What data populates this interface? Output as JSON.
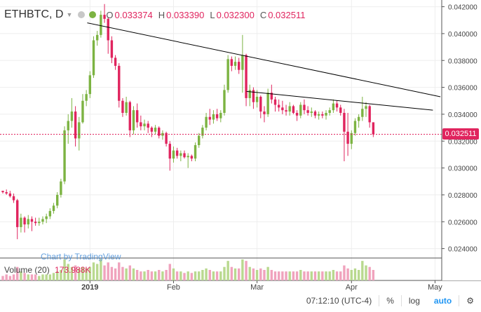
{
  "header": {
    "symbol": "ETHBTC, D",
    "ohlc": [
      {
        "k": "O",
        "v": "0.033374"
      },
      {
        "k": "H",
        "v": "0.033390"
      },
      {
        "k": "L",
        "v": "0.032300"
      },
      {
        "k": "C",
        "v": "0.032511"
      }
    ]
  },
  "watermark": "Chart by TradingView",
  "volume": {
    "label": "Volume (20)",
    "value": "173.988K"
  },
  "bottom_bar": {
    "time": "07:12:10 (UTC-4)",
    "percent": "%",
    "log": "log",
    "auto": "auto"
  },
  "colors": {
    "up": "#7cb342",
    "down": "#e0245e",
    "grid": "#eeeeee",
    "axis": "#555555",
    "trend": "#000000"
  },
  "chart_data": {
    "type": "candlestick",
    "y_axis": {
      "ticks": [
        "0.042000",
        "0.040000",
        "0.038000",
        "0.036000",
        "0.034000",
        "0.032000",
        "0.030000",
        "0.028000",
        "0.026000",
        "0.024000"
      ],
      "ylim": [
        0.0233,
        0.0425
      ],
      "position": "right"
    },
    "x_axis": {
      "ticks": [
        "2019",
        "Feb",
        "Mar",
        "Apr",
        "May"
      ]
    },
    "last_price": "0.032511",
    "trendlines": [
      {
        "x1": 0.1975,
        "y1": 0.0408,
        "x2": 0.997,
        "y2": 0.0353
      },
      {
        "x1": 0.558,
        "y1": 0.0357,
        "x2": 0.98,
        "y2": 0.0343
      }
    ],
    "candles": [
      [
        0.0283,
        0.0283,
        0.0281,
        0.0282
      ],
      [
        0.0282,
        0.0284,
        0.028,
        0.0281
      ],
      [
        0.0281,
        0.0283,
        0.0278,
        0.0279
      ],
      [
        0.0279,
        0.0281,
        0.0274,
        0.0276
      ],
      [
        0.0276,
        0.0277,
        0.0247,
        0.0256
      ],
      [
        0.0256,
        0.0266,
        0.0252,
        0.0263
      ],
      [
        0.0263,
        0.0264,
        0.0252,
        0.0258
      ],
      [
        0.0258,
        0.0265,
        0.0255,
        0.0262
      ],
      [
        0.0262,
        0.0264,
        0.0253,
        0.026
      ],
      [
        0.026,
        0.0263,
        0.0257,
        0.0259
      ],
      [
        0.0259,
        0.0263,
        0.0257,
        0.026
      ],
      [
        0.026,
        0.0264,
        0.0258,
        0.0262
      ],
      [
        0.0262,
        0.0266,
        0.0259,
        0.0264
      ],
      [
        0.0264,
        0.027,
        0.0262,
        0.0268
      ],
      [
        0.0268,
        0.0274,
        0.0266,
        0.0272
      ],
      [
        0.0272,
        0.0282,
        0.027,
        0.028
      ],
      [
        0.028,
        0.0292,
        0.0278,
        0.029
      ],
      [
        0.029,
        0.0331,
        0.0288,
        0.0328
      ],
      [
        0.0328,
        0.034,
        0.0318,
        0.0335
      ],
      [
        0.0335,
        0.0352,
        0.033,
        0.0342
      ],
      [
        0.0342,
        0.0346,
        0.0316,
        0.0322
      ],
      [
        0.0322,
        0.0338,
        0.0313,
        0.0334
      ],
      [
        0.0334,
        0.0355,
        0.0333,
        0.035
      ],
      [
        0.035,
        0.0358,
        0.0346,
        0.0355
      ],
      [
        0.0355,
        0.0372,
        0.0352,
        0.0369
      ],
      [
        0.0369,
        0.0398,
        0.0367,
        0.0395
      ],
      [
        0.0395,
        0.0402,
        0.0391,
        0.0399
      ],
      [
        0.0399,
        0.0417,
        0.0397,
        0.0414
      ],
      [
        0.0414,
        0.0422,
        0.0408,
        0.0411
      ],
      [
        0.0411,
        0.0412,
        0.0385,
        0.0395
      ],
      [
        0.0395,
        0.0398,
        0.0378,
        0.0382
      ],
      [
        0.0382,
        0.0384,
        0.0373,
        0.0376
      ],
      [
        0.0376,
        0.0378,
        0.0345,
        0.035
      ],
      [
        0.035,
        0.0352,
        0.0338,
        0.0341
      ],
      [
        0.0341,
        0.0353,
        0.0339,
        0.0349
      ],
      [
        0.0349,
        0.035,
        0.0323,
        0.0328
      ],
      [
        0.0328,
        0.0346,
        0.0325,
        0.0343
      ],
      [
        0.0343,
        0.0348,
        0.033,
        0.0334
      ],
      [
        0.0334,
        0.0339,
        0.0328,
        0.0331
      ],
      [
        0.0331,
        0.0336,
        0.0328,
        0.0333
      ],
      [
        0.0333,
        0.0335,
        0.0326,
        0.033
      ],
      [
        0.033,
        0.0331,
        0.0323,
        0.0327
      ],
      [
        0.0327,
        0.0332,
        0.0325,
        0.033
      ],
      [
        0.033,
        0.0331,
        0.0322,
        0.0324
      ],
      [
        0.0324,
        0.0328,
        0.0321,
        0.0326
      ],
      [
        0.0326,
        0.0327,
        0.0316,
        0.0318
      ],
      [
        0.0318,
        0.032,
        0.0298,
        0.0307
      ],
      [
        0.0307,
        0.0316,
        0.0304,
        0.0313
      ],
      [
        0.0313,
        0.0315,
        0.0307,
        0.0309
      ],
      [
        0.0309,
        0.0313,
        0.0305,
        0.0311
      ],
      [
        0.0311,
        0.0313,
        0.0307,
        0.0308
      ],
      [
        0.0308,
        0.0311,
        0.03,
        0.0309
      ],
      [
        0.0309,
        0.031,
        0.0305,
        0.0307
      ],
      [
        0.0307,
        0.0319,
        0.0305,
        0.0317
      ],
      [
        0.0317,
        0.0326,
        0.0315,
        0.0324
      ],
      [
        0.0324,
        0.0332,
        0.0322,
        0.033
      ],
      [
        0.033,
        0.0341,
        0.0328,
        0.0338
      ],
      [
        0.0338,
        0.0344,
        0.0332,
        0.0336
      ],
      [
        0.0336,
        0.0343,
        0.0333,
        0.034
      ],
      [
        0.034,
        0.0344,
        0.0335,
        0.0337
      ],
      [
        0.0337,
        0.0343,
        0.0334,
        0.0341
      ],
      [
        0.0341,
        0.0362,
        0.0339,
        0.0358
      ],
      [
        0.0358,
        0.0384,
        0.0356,
        0.0381
      ],
      [
        0.0381,
        0.0383,
        0.0372,
        0.0376
      ],
      [
        0.0376,
        0.0383,
        0.0373,
        0.0379
      ],
      [
        0.0379,
        0.0382,
        0.037,
        0.0373
      ],
      [
        0.0373,
        0.0399,
        0.0356,
        0.0384
      ],
      [
        0.0384,
        0.0385,
        0.0346,
        0.0352
      ],
      [
        0.0352,
        0.0362,
        0.0346,
        0.0358
      ],
      [
        0.0358,
        0.036,
        0.0344,
        0.0349
      ],
      [
        0.0349,
        0.0358,
        0.0345,
        0.0353
      ],
      [
        0.0353,
        0.0354,
        0.0337,
        0.0342
      ],
      [
        0.0342,
        0.0346,
        0.0334,
        0.034
      ],
      [
        0.034,
        0.0359,
        0.0338,
        0.0356
      ],
      [
        0.0356,
        0.0362,
        0.0348,
        0.0351
      ],
      [
        0.0351,
        0.0353,
        0.0342,
        0.0347
      ],
      [
        0.0347,
        0.0351,
        0.0342,
        0.0345
      ],
      [
        0.0345,
        0.035,
        0.034,
        0.0343
      ],
      [
        0.0343,
        0.0347,
        0.0339,
        0.0342
      ],
      [
        0.0342,
        0.0349,
        0.0339,
        0.0346
      ],
      [
        0.0346,
        0.0347,
        0.034,
        0.0341
      ],
      [
        0.0341,
        0.0343,
        0.0335,
        0.0339
      ],
      [
        0.0339,
        0.0349,
        0.0337,
        0.0347
      ],
      [
        0.0347,
        0.0351,
        0.034,
        0.0343
      ],
      [
        0.0343,
        0.0346,
        0.0339,
        0.0341
      ],
      [
        0.0341,
        0.0345,
        0.0338,
        0.0342
      ],
      [
        0.0342,
        0.0343,
        0.0337,
        0.0339
      ],
      [
        0.0339,
        0.0342,
        0.0336,
        0.034
      ],
      [
        0.034,
        0.0342,
        0.0337,
        0.0339
      ],
      [
        0.0339,
        0.0343,
        0.0336,
        0.0341
      ],
      [
        0.0341,
        0.0345,
        0.0339,
        0.0343
      ],
      [
        0.0343,
        0.0351,
        0.0341,
        0.0348
      ],
      [
        0.0348,
        0.035,
        0.0342,
        0.0345
      ],
      [
        0.0345,
        0.0347,
        0.0339,
        0.0341
      ],
      [
        0.0341,
        0.0344,
        0.0305,
        0.0327
      ],
      [
        0.0327,
        0.0341,
        0.0309,
        0.0318
      ],
      [
        0.0318,
        0.0328,
        0.0314,
        0.0326
      ],
      [
        0.0326,
        0.0337,
        0.0324,
        0.0335
      ],
      [
        0.0335,
        0.034,
        0.033,
        0.0338
      ],
      [
        0.0338,
        0.0353,
        0.0335,
        0.0344
      ],
      [
        0.0344,
        0.0349,
        0.0338,
        0.0346
      ],
      [
        0.0346,
        0.0347,
        0.033,
        0.0334
      ],
      [
        0.0334,
        0.0334,
        0.0323,
        0.0325
      ]
    ],
    "volumes": [
      3,
      4,
      3,
      4,
      9,
      6,
      5,
      4,
      4,
      4,
      3,
      4,
      4,
      4,
      5,
      6,
      7,
      14,
      11,
      9,
      10,
      8,
      9,
      8,
      9,
      12,
      11,
      14,
      10,
      12,
      9,
      8,
      12,
      9,
      8,
      10,
      8,
      7,
      6,
      6,
      7,
      6,
      6,
      7,
      6,
      7,
      11,
      8,
      6,
      6,
      5,
      6,
      5,
      6,
      6,
      7,
      8,
      7,
      6,
      6,
      6,
      9,
      13,
      9,
      8,
      8,
      14,
      13,
      9,
      8,
      7,
      8,
      7,
      9,
      7,
      6,
      6,
      6,
      6,
      6,
      6,
      6,
      7,
      6,
      6,
      6,
      6,
      6,
      6,
      6,
      6,
      7,
      6,
      6,
      10,
      8,
      7,
      8,
      7,
      13,
      10,
      9,
      7
    ]
  }
}
